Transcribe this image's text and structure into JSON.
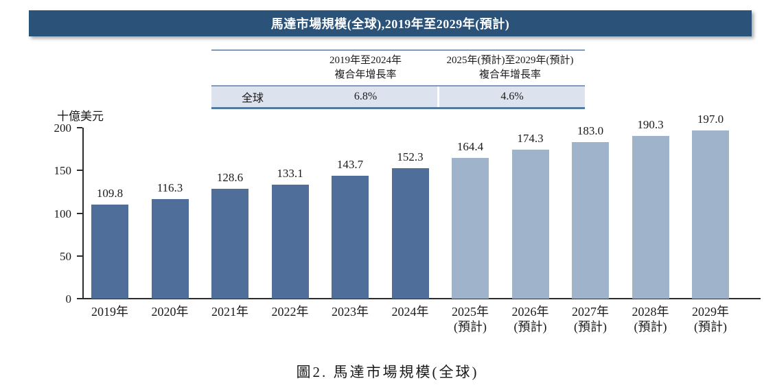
{
  "title_bar": {
    "text": "馬達市場規模(全球),2019年至2029年(預計)"
  },
  "cagr_table": {
    "row_label": "全球",
    "col1_header_line1": "2019年至2024年",
    "col1_header_line2": "複合年增長率",
    "col2_header_line1": "2025年(預計)至2029年(預計)",
    "col2_header_line2": "複合年增長率",
    "col1_value": "6.8%",
    "col2_value": "4.6%"
  },
  "chart_data": {
    "type": "bar",
    "title": "馬達市場規模(全球),2019年至2029年(預計)",
    "ylabel": "十億美元",
    "ylim": [
      0,
      200
    ],
    "yticks": [
      0,
      50,
      100,
      150,
      200
    ],
    "grid": false,
    "legend": null,
    "categories": [
      "2019年",
      "2020年",
      "2021年",
      "2022年",
      "2023年",
      "2024年",
      "2025年",
      "2026年",
      "2027年",
      "2028年",
      "2029年"
    ],
    "sublabels": [
      "",
      "",
      "",
      "",
      "",
      "",
      "(預計)",
      "(預計)",
      "(預計)",
      "(預計)",
      "(預計)"
    ],
    "values": [
      109.8,
      116.3,
      128.6,
      133.1,
      143.7,
      152.3,
      164.4,
      174.3,
      183.0,
      190.3,
      197.0
    ],
    "value_labels": [
      "109.8",
      "116.3",
      "128.6",
      "133.1",
      "143.7",
      "152.3",
      "164.4",
      "174.3",
      "183.0",
      "190.3",
      "197.0"
    ],
    "actual_count": 6,
    "colors": {
      "actual": "#506E9A",
      "forecast": "#9FB4CA"
    }
  },
  "caption": "圖2. 馬達市場規模(全球)"
}
